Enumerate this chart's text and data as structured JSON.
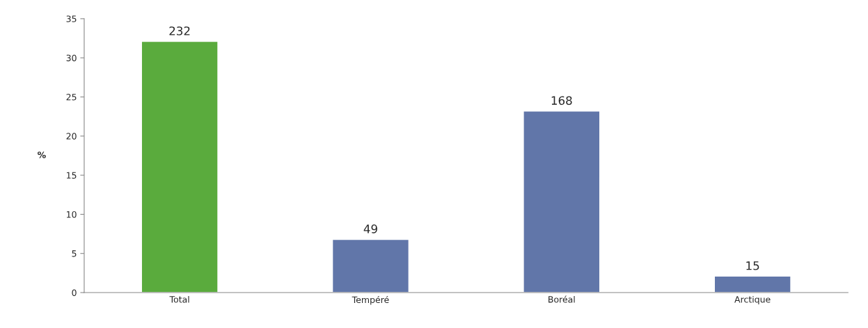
{
  "chart_data": {
    "type": "bar",
    "ylabel": "%",
    "categories": [
      "Total",
      "Tempéré",
      "Boréal",
      "Arctique"
    ],
    "values": [
      32.1,
      6.8,
      23.2,
      2.1
    ],
    "annotations": [
      {
        "text": "232",
        "x": "Total",
        "y": 32.1
      },
      {
        "text": "49",
        "x": "Tempéré",
        "y": 6.8
      },
      {
        "text": "168",
        "x": "Boréal",
        "y": 23.2
      },
      {
        "text": "15",
        "x": "Arctique",
        "y": 2.1
      }
    ],
    "colors": [
      "#5aab3d",
      "#6176a9",
      "#6176a9",
      "#6176a9"
    ],
    "ylim": [
      0,
      35
    ],
    "yticks": [
      0,
      5,
      10,
      15,
      20,
      25,
      30,
      35
    ],
    "grid": false,
    "legend": false
  }
}
